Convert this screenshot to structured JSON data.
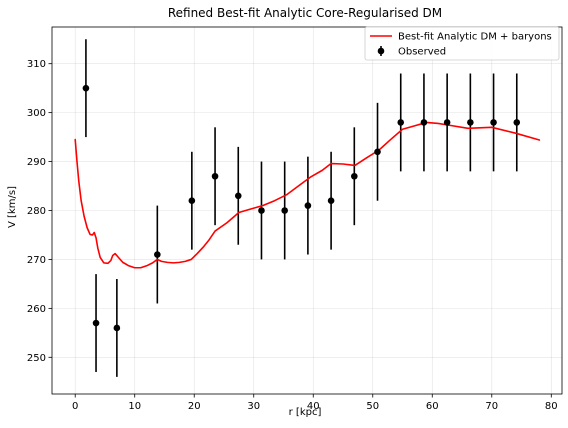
{
  "chart_data": {
    "type": "line",
    "title": "Refined Best-fit Analytic Core-Regularised DM",
    "xlabel": "r [kpc]",
    "ylabel": "V [km/s]",
    "xlim": [
      -3.9,
      81.8
    ],
    "ylim": [
      242.5,
      317.5
    ],
    "xticks": [
      0,
      10,
      20,
      30,
      40,
      50,
      60,
      70,
      80
    ],
    "yticks": [
      250,
      260,
      270,
      280,
      290,
      300,
      310
    ],
    "grid": true,
    "legend_position": "top-right",
    "colors": {
      "model": "#ff0000",
      "observed": "#000000",
      "grid": "#b0b0b0",
      "axes": "#000000"
    },
    "series": [
      {
        "name": "Best-fit Analytic DM + baryons",
        "kind": "line",
        "x": [
          0.0,
          0.3,
          0.6,
          1.0,
          1.5,
          2.0,
          2.5,
          2.9,
          3.2,
          3.5,
          3.8,
          4.2,
          4.8,
          5.5,
          6.0,
          6.3,
          6.7,
          7.2,
          8.0,
          9.0,
          10.0,
          11.0,
          12.0,
          13.0,
          13.8,
          14.5,
          15.5,
          16.5,
          17.5,
          18.5,
          19.5,
          20.5,
          21.5,
          22.5,
          23.5,
          25.5,
          27.5,
          29.5,
          31.5,
          33.5,
          35.5,
          37.5,
          39.5,
          41.5,
          43.0,
          45.0,
          47.0,
          49.0,
          51.0,
          53.0,
          55.0,
          57.0,
          59.0,
          61.0,
          63.0,
          66.0,
          70.0,
          74.0,
          78.0
        ],
        "y": [
          294.5,
          290.0,
          286.0,
          282.0,
          278.8,
          276.5,
          275.1,
          275.0,
          275.5,
          274.4,
          272.3,
          270.4,
          269.3,
          269.2,
          269.8,
          270.8,
          271.2,
          270.5,
          269.4,
          268.7,
          268.3,
          268.3,
          268.7,
          269.3,
          270.0,
          269.6,
          269.4,
          269.3,
          269.4,
          269.6,
          270.0,
          271.2,
          272.5,
          274.0,
          275.8,
          277.5,
          279.6,
          280.3,
          281.0,
          282.0,
          283.2,
          285.0,
          286.8,
          288.2,
          289.6,
          289.5,
          289.2,
          290.8,
          292.3,
          294.5,
          296.6,
          297.3,
          298.0,
          297.8,
          297.4,
          296.8,
          297.0,
          295.8,
          294.4
        ]
      },
      {
        "name": "Observed",
        "kind": "errorbar",
        "x": [
          1.8,
          3.5,
          7.0,
          13.8,
          19.6,
          23.5,
          27.4,
          31.3,
          35.2,
          39.1,
          43.0,
          46.9,
          50.8,
          54.7,
          58.6,
          62.5,
          66.4,
          70.3,
          74.2
        ],
        "y": [
          305,
          257,
          256,
          271,
          282,
          287,
          283,
          280,
          280,
          281,
          282,
          287,
          292,
          298,
          298,
          298,
          298,
          298,
          298
        ],
        "yerr": [
          10,
          10,
          10,
          10,
          10,
          10,
          10,
          10,
          10,
          10,
          10,
          10,
          10,
          10,
          10,
          10,
          10,
          10,
          10
        ]
      }
    ]
  }
}
